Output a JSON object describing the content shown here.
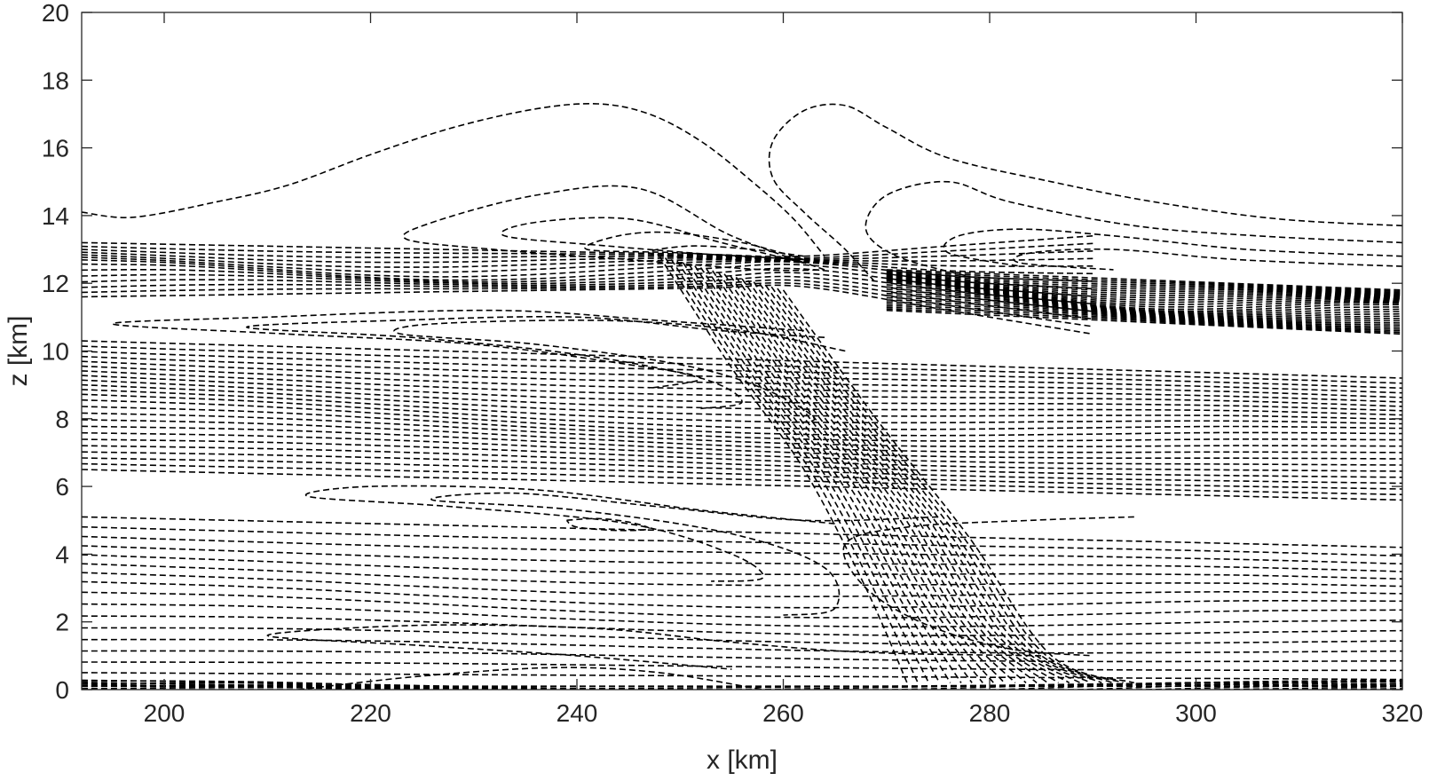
{
  "chart_data": {
    "type": "contour",
    "title": "",
    "xlabel": "x [km]",
    "ylabel": "z [km]",
    "xlim": [
      192,
      320
    ],
    "ylim": [
      0,
      20
    ],
    "xticks": [
      200,
      220,
      240,
      260,
      280,
      300,
      320
    ],
    "yticks": [
      0,
      2,
      4,
      6,
      8,
      10,
      12,
      14,
      16,
      18,
      20
    ],
    "grid": false,
    "line_style": "dashed",
    "line_color": "#000000",
    "feature_contours": [
      {
        "name": "upper-left-arc",
        "points": [
          [
            192,
            14.1
          ],
          [
            197,
            13.95
          ],
          [
            205,
            14.4
          ],
          [
            212,
            14.9
          ],
          [
            220,
            15.8
          ],
          [
            228,
            16.6
          ],
          [
            236,
            17.15
          ],
          [
            242,
            17.3
          ],
          [
            247,
            17.0
          ],
          [
            252,
            16.2
          ],
          [
            257,
            15.0
          ],
          [
            261,
            13.9
          ],
          [
            264,
            12.8
          ]
        ]
      },
      {
        "name": "upper-right-loop",
        "points": [
          [
            320,
            13.7
          ],
          [
            308,
            13.9
          ],
          [
            296,
            14.4
          ],
          [
            286,
            15.0
          ],
          [
            276,
            15.7
          ],
          [
            270,
            16.6
          ],
          [
            266,
            17.25
          ],
          [
            262,
            17.1
          ],
          [
            259,
            16.2
          ],
          [
            259,
            15.1
          ],
          [
            262,
            14.1
          ],
          [
            266,
            13.0
          ],
          [
            269,
            12.0
          ]
        ]
      },
      {
        "name": "loop-a",
        "points": [
          [
            264,
            12.4
          ],
          [
            255,
            13.4
          ],
          [
            246,
            14.8
          ],
          [
            236,
            14.6
          ],
          [
            226,
            13.8
          ],
          [
            223.5,
            13.3
          ],
          [
            232,
            13.0
          ],
          [
            245,
            12.7
          ],
          [
            258,
            12.4
          ],
          [
            264,
            12.4
          ]
        ]
      },
      {
        "name": "loop-b",
        "points": [
          [
            262,
            12.6
          ],
          [
            254,
            13.2
          ],
          [
            245,
            13.9
          ],
          [
            236,
            13.8
          ],
          [
            233,
            13.4
          ],
          [
            243,
            13.1
          ],
          [
            255,
            12.8
          ],
          [
            262,
            12.6
          ]
        ]
      },
      {
        "name": "loop-c",
        "points": [
          [
            262,
            12.7
          ],
          [
            256,
            13.2
          ],
          [
            249,
            13.5
          ],
          [
            244,
            13.4
          ],
          [
            241,
            13.0
          ],
          [
            250,
            12.9
          ],
          [
            262,
            12.7
          ]
        ]
      },
      {
        "name": "loop-d",
        "points": [
          [
            262,
            12.8
          ],
          [
            257,
            13.0
          ],
          [
            251,
            13.1
          ],
          [
            247,
            12.9
          ],
          [
            254,
            12.7
          ],
          [
            262,
            12.8
          ]
        ]
      },
      {
        "name": "right-loop-1",
        "points": [
          [
            320,
            13.2
          ],
          [
            306,
            13.4
          ],
          [
            294,
            13.7
          ],
          [
            282,
            14.4
          ],
          [
            276,
            15.0
          ],
          [
            270,
            14.6
          ],
          [
            268,
            13.6
          ],
          [
            271,
            12.8
          ],
          [
            278,
            12.2
          ]
        ]
      },
      {
        "name": "right-loop-2",
        "points": [
          [
            320,
            12.8
          ],
          [
            305,
            13.0
          ],
          [
            292,
            13.4
          ],
          [
            283,
            13.6
          ],
          [
            277,
            13.4
          ],
          [
            276,
            12.9
          ],
          [
            283,
            12.5
          ]
        ]
      },
      {
        "name": "right-loop-3",
        "points": [
          [
            320,
            12.5
          ],
          [
            304,
            12.7
          ],
          [
            292,
            13.0
          ],
          [
            284,
            12.9
          ],
          [
            283,
            12.6
          ],
          [
            292,
            12.4
          ]
        ]
      },
      {
        "name": "left-lobe-1",
        "points": [
          [
            262,
            10.6
          ],
          [
            248,
            10.9
          ],
          [
            232,
            11.2
          ],
          [
            210,
            11.0
          ],
          [
            195,
            10.8
          ],
          [
            212,
            10.5
          ],
          [
            230,
            10.2
          ],
          [
            245,
            9.6
          ],
          [
            252,
            9.2
          ],
          [
            247,
            8.9
          ]
        ]
      },
      {
        "name": "left-lobe-2",
        "points": [
          [
            264,
            10.4
          ],
          [
            254,
            10.6
          ],
          [
            240,
            11.0
          ],
          [
            222,
            10.9
          ],
          [
            208,
            10.7
          ],
          [
            224,
            10.4
          ],
          [
            240,
            9.9
          ],
          [
            252,
            9.2
          ],
          [
            256,
            8.5
          ],
          [
            252,
            8.3
          ]
        ]
      },
      {
        "name": "left-lobe-3",
        "points": [
          [
            266,
            10.0
          ],
          [
            256,
            10.6
          ],
          [
            243,
            10.9
          ],
          [
            226,
            10.8
          ],
          [
            223,
            10.5
          ],
          [
            236,
            10.2
          ],
          [
            250,
            9.6
          ],
          [
            258,
            8.9
          ],
          [
            263,
            8.0
          ],
          [
            259,
            7.9
          ]
        ]
      },
      {
        "name": "mid-lobe-1",
        "points": [
          [
            265,
            4.9
          ],
          [
            252,
            5.3
          ],
          [
            236,
            5.9
          ],
          [
            220,
            6.0
          ],
          [
            214,
            5.7
          ],
          [
            228,
            5.4
          ],
          [
            245,
            4.9
          ],
          [
            255,
            4.0
          ],
          [
            258,
            3.3
          ],
          [
            253,
            3.2
          ]
        ]
      },
      {
        "name": "mid-lobe-2",
        "points": [
          [
            275,
            5.1
          ],
          [
            262,
            5.0
          ],
          [
            248,
            5.4
          ],
          [
            234,
            5.8
          ],
          [
            226,
            5.6
          ],
          [
            240,
            5.3
          ],
          [
            255,
            4.6
          ],
          [
            264,
            3.6
          ],
          [
            265,
            2.4
          ],
          [
            260,
            2.2
          ]
        ]
      },
      {
        "name": "small-loop",
        "points": [
          [
            239,
            5.0
          ],
          [
            242,
            5.05
          ],
          [
            245,
            4.95
          ],
          [
            247,
            4.75
          ],
          [
            244,
            4.7
          ],
          [
            240,
            4.8
          ],
          [
            239,
            5.0
          ]
        ]
      },
      {
        "name": "lower-lobe-1",
        "points": [
          [
            285,
            1.0
          ],
          [
            268,
            1.1
          ],
          [
            255,
            1.4
          ],
          [
            242,
            1.8
          ],
          [
            225,
            1.9
          ],
          [
            210,
            1.6
          ],
          [
            225,
            1.3
          ],
          [
            240,
            1.0
          ],
          [
            255,
            0.6
          ]
        ]
      },
      {
        "name": "lower-lobe-2",
        "points": [
          [
            294,
            5.1
          ],
          [
            284,
            5.0
          ],
          [
            272,
            4.8
          ],
          [
            266,
            4.3
          ],
          [
            268,
            3.0
          ],
          [
            274,
            1.9
          ],
          [
            282,
            1.2
          ],
          [
            290,
            1.0
          ]
        ]
      },
      {
        "name": "bottom-lens",
        "points": [
          [
            213,
            0.0
          ],
          [
            225,
            0.4
          ],
          [
            238,
            0.65
          ],
          [
            248,
            0.5
          ],
          [
            258,
            0.0
          ]
        ]
      }
    ],
    "band_families": [
      {
        "name": "upper-left-band",
        "count": 14,
        "left": [
          192,
          11.6,
          13.2
        ],
        "right": [
          262,
          11.9,
          12.8
        ],
        "cross_to": [
          290,
          10.5,
          13.4
        ]
      },
      {
        "name": "upper-right-band",
        "count": 30,
        "left": [
          270,
          11.2,
          12.4
        ],
        "right": [
          320,
          10.5,
          11.8
        ]
      },
      {
        "name": "middle-band",
        "count": 24,
        "left": [
          192,
          6.5,
          10.3
        ],
        "right": [
          320,
          5.6,
          9.2
        ]
      },
      {
        "name": "lower-band",
        "count": 16,
        "left": [
          192,
          0.5,
          5.1
        ],
        "right": [
          320,
          0.3,
          4.2
        ]
      },
      {
        "name": "near-ground-band",
        "count": 10,
        "left": [
          192,
          0.0,
          0.1
        ],
        "right": [
          320,
          0.0,
          0.1
        ]
      }
    ]
  }
}
